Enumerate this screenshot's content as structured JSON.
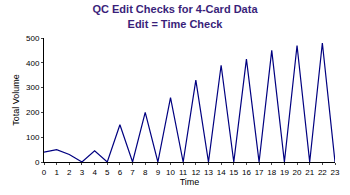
{
  "chart_data": {
    "type": "line",
    "title": "QC Edit Checks for 4-Card Data",
    "subtitle": "Edit = Time Check",
    "x_label": "Time",
    "y_label": "Total Volume",
    "x": [
      0,
      1,
      2,
      3,
      4,
      5,
      6,
      7,
      8,
      9,
      10,
      11,
      12,
      13,
      14,
      15,
      16,
      17,
      18,
      19,
      20,
      21,
      22,
      23
    ],
    "values": [
      40,
      50,
      30,
      0,
      45,
      0,
      150,
      0,
      200,
      0,
      260,
      0,
      330,
      0,
      390,
      0,
      415,
      0,
      450,
      0,
      470,
      0,
      480,
      0
    ],
    "color": "#000080",
    "xlim": [
      0,
      23
    ],
    "xticks": [
      0,
      1,
      2,
      3,
      4,
      5,
      6,
      7,
      8,
      9,
      10,
      11,
      12,
      13,
      14,
      15,
      16,
      17,
      18,
      19,
      20,
      21,
      22,
      23
    ],
    "ylim": [
      0,
      500
    ],
    "yticks": [
      0,
      100,
      200,
      300,
      400,
      500
    ],
    "grid": false
  }
}
